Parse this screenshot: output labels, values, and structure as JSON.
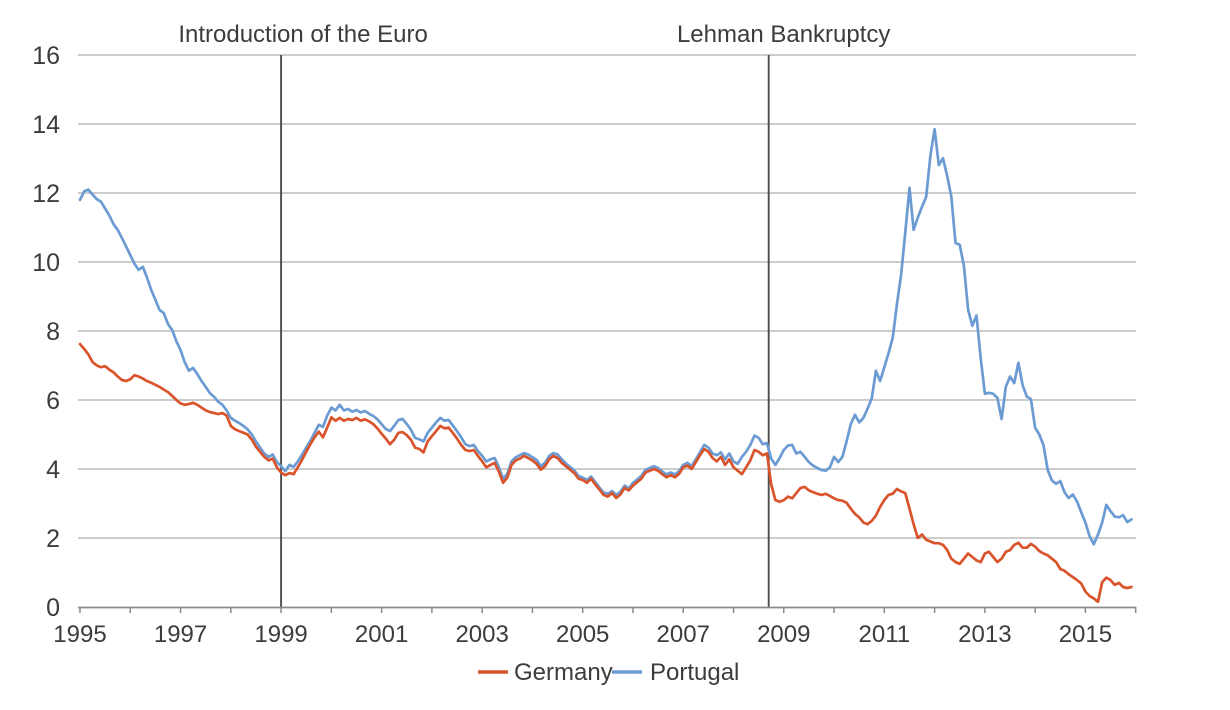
{
  "page": {
    "background": "#ffffff"
  },
  "styles": {
    "grid_color": "#bcbcbc",
    "axis_color": "#8a8a8a",
    "event_line_color": "#4d4d4d",
    "text_color": "#3c3c3c",
    "germany_color": "#d9532b",
    "portugal_color": "#6b9bd2"
  },
  "chart_data": {
    "type": "line",
    "title": "",
    "xlabel": "",
    "ylabel": "",
    "frequency": "monthly",
    "grid": "horizontal",
    "legend_position": "bottom-center",
    "x_axis": {
      "start_year": 1995,
      "end_year": 2016,
      "tick_interval_years": 1,
      "label_years": [
        1995,
        1997,
        1999,
        2001,
        2003,
        2005,
        2007,
        2009,
        2011,
        2013,
        2015
      ]
    },
    "y_axis": {
      "min": 0,
      "max": 16,
      "tick_step": 2,
      "tick_labels": [
        "0",
        "2",
        "4",
        "6",
        "8",
        "10",
        "12",
        "14",
        "16"
      ]
    },
    "annotations": [
      {
        "label": "Introduction of the Euro",
        "year": 1999.0
      },
      {
        "label": "Lehman Bankruptcy",
        "year": 2008.7
      }
    ],
    "series": [
      {
        "name": "Germany",
        "color": "#d9532b",
        "start_year": 1995,
        "values": [
          7.62,
          7.48,
          7.32,
          7.1,
          7.0,
          6.95,
          6.98,
          6.88,
          6.8,
          6.68,
          6.58,
          6.55,
          6.6,
          6.72,
          6.68,
          6.62,
          6.55,
          6.5,
          6.44,
          6.38,
          6.3,
          6.23,
          6.12,
          6.0,
          5.9,
          5.86,
          5.88,
          5.92,
          5.86,
          5.78,
          5.7,
          5.65,
          5.62,
          5.59,
          5.62,
          5.55,
          5.25,
          5.15,
          5.1,
          5.05,
          5.0,
          4.85,
          4.65,
          4.5,
          4.35,
          4.25,
          4.3,
          4.05,
          3.9,
          3.82,
          3.88,
          3.85,
          4.05,
          4.26,
          4.5,
          4.72,
          4.92,
          5.08,
          4.92,
          5.2,
          5.5,
          5.4,
          5.48,
          5.4,
          5.45,
          5.42,
          5.48,
          5.4,
          5.44,
          5.38,
          5.3,
          5.18,
          5.02,
          4.88,
          4.72,
          4.85,
          5.05,
          5.07,
          4.98,
          4.85,
          4.62,
          4.58,
          4.48,
          4.8,
          4.95,
          5.1,
          5.25,
          5.18,
          5.2,
          5.05,
          4.88,
          4.7,
          4.55,
          4.52,
          4.55,
          4.38,
          4.22,
          4.05,
          4.12,
          4.18,
          3.92,
          3.6,
          3.75,
          4.12,
          4.25,
          4.3,
          4.38,
          4.32,
          4.25,
          4.15,
          3.98,
          4.08,
          4.28,
          4.38,
          4.32,
          4.18,
          4.08,
          3.98,
          3.88,
          3.72,
          3.68,
          3.6,
          3.72,
          3.55,
          3.4,
          3.25,
          3.2,
          3.3,
          3.16,
          3.26,
          3.45,
          3.38,
          3.52,
          3.62,
          3.72,
          3.9,
          3.95,
          4.0,
          3.95,
          3.85,
          3.76,
          3.82,
          3.76,
          3.86,
          4.05,
          4.1,
          4.0,
          4.2,
          4.4,
          4.58,
          4.5,
          4.32,
          4.22,
          4.35,
          4.12,
          4.28,
          4.05,
          3.95,
          3.85,
          4.05,
          4.25,
          4.55,
          4.5,
          4.4,
          4.45,
          3.55,
          3.1,
          3.05,
          3.1,
          3.2,
          3.15,
          3.3,
          3.45,
          3.48,
          3.38,
          3.33,
          3.28,
          3.25,
          3.28,
          3.22,
          3.15,
          3.1,
          3.08,
          3.02,
          2.85,
          2.7,
          2.6,
          2.45,
          2.4,
          2.5,
          2.65,
          2.9,
          3.1,
          3.25,
          3.28,
          3.42,
          3.35,
          3.3,
          2.85,
          2.4,
          2.0,
          2.1,
          1.95,
          1.9,
          1.85,
          1.85,
          1.8,
          1.65,
          1.4,
          1.3,
          1.25,
          1.4,
          1.55,
          1.45,
          1.35,
          1.3,
          1.55,
          1.6,
          1.45,
          1.3,
          1.4,
          1.6,
          1.65,
          1.8,
          1.86,
          1.72,
          1.72,
          1.83,
          1.75,
          1.62,
          1.55,
          1.5,
          1.4,
          1.3,
          1.1,
          1.05,
          0.95,
          0.87,
          0.78,
          0.68,
          0.45,
          0.32,
          0.25,
          0.15,
          0.72,
          0.85,
          0.78,
          0.64,
          0.7,
          0.58,
          0.55,
          0.58
        ]
      },
      {
        "name": "Portugal",
        "color": "#6b9bd2",
        "start_year": 1995,
        "values": [
          11.8,
          12.05,
          12.1,
          11.95,
          11.82,
          11.75,
          11.55,
          11.35,
          11.1,
          10.93,
          10.7,
          10.45,
          10.2,
          9.95,
          9.77,
          9.86,
          9.55,
          9.19,
          8.9,
          8.61,
          8.52,
          8.2,
          8.03,
          7.7,
          7.45,
          7.1,
          6.85,
          6.93,
          6.75,
          6.55,
          6.38,
          6.2,
          6.09,
          5.95,
          5.86,
          5.7,
          5.48,
          5.4,
          5.33,
          5.25,
          5.15,
          5.0,
          4.8,
          4.62,
          4.45,
          4.35,
          4.42,
          4.2,
          4.08,
          3.94,
          4.12,
          4.06,
          4.22,
          4.41,
          4.62,
          4.82,
          5.05,
          5.28,
          5.22,
          5.55,
          5.78,
          5.7,
          5.86,
          5.7,
          5.74,
          5.66,
          5.71,
          5.64,
          5.68,
          5.6,
          5.54,
          5.44,
          5.3,
          5.16,
          5.1,
          5.25,
          5.42,
          5.45,
          5.3,
          5.14,
          4.9,
          4.86,
          4.8,
          5.05,
          5.2,
          5.35,
          5.48,
          5.4,
          5.42,
          5.26,
          5.1,
          4.92,
          4.72,
          4.66,
          4.7,
          4.52,
          4.38,
          4.22,
          4.28,
          4.32,
          4.05,
          3.72,
          3.86,
          4.22,
          4.34,
          4.4,
          4.46,
          4.42,
          4.34,
          4.26,
          4.08,
          4.18,
          4.38,
          4.46,
          4.42,
          4.28,
          4.16,
          4.06,
          3.96,
          3.8,
          3.75,
          3.68,
          3.78,
          3.62,
          3.46,
          3.32,
          3.28,
          3.36,
          3.25,
          3.34,
          3.52,
          3.44,
          3.6,
          3.7,
          3.8,
          3.98,
          4.03,
          4.08,
          4.03,
          3.93,
          3.84,
          3.9,
          3.84,
          3.94,
          4.12,
          4.18,
          4.08,
          4.28,
          4.48,
          4.7,
          4.62,
          4.45,
          4.4,
          4.48,
          4.28,
          4.45,
          4.22,
          4.15,
          4.35,
          4.5,
          4.7,
          4.97,
          4.9,
          4.72,
          4.75,
          4.3,
          4.12,
          4.32,
          4.55,
          4.68,
          4.7,
          4.45,
          4.5,
          4.35,
          4.2,
          4.1,
          4.03,
          3.97,
          3.95,
          4.05,
          4.35,
          4.2,
          4.35,
          4.8,
          5.3,
          5.57,
          5.35,
          5.48,
          5.75,
          6.05,
          6.85,
          6.55,
          6.95,
          7.35,
          7.8,
          8.77,
          9.63,
          10.87,
          12.15,
          10.93,
          11.29,
          11.6,
          11.89,
          13.08,
          13.85,
          12.81,
          13.01,
          12.49,
          11.9,
          10.55,
          10.5,
          9.89,
          8.62,
          8.15,
          8.45,
          7.21,
          6.18,
          6.21,
          6.18,
          6.06,
          5.45,
          6.38,
          6.68,
          6.49,
          7.08,
          6.43,
          6.1,
          6.03,
          5.2,
          5.0,
          4.69,
          3.97,
          3.67,
          3.57,
          3.65,
          3.33,
          3.16,
          3.26,
          3.06,
          2.75,
          2.45,
          2.05,
          1.82,
          2.1,
          2.45,
          2.96,
          2.78,
          2.62,
          2.6,
          2.66,
          2.46,
          2.54
        ]
      }
    ]
  }
}
